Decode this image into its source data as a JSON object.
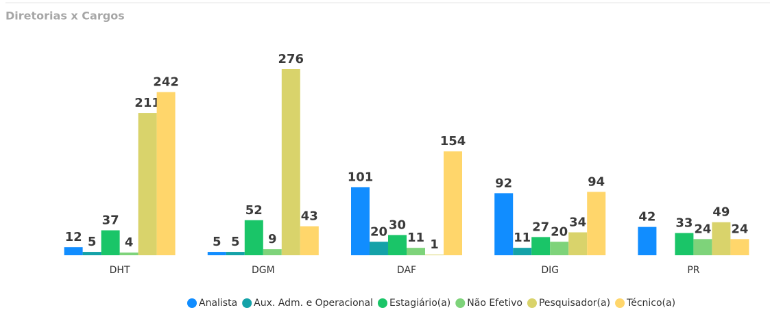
{
  "chart_data": {
    "type": "bar",
    "title": "Diretorias x Cargos",
    "categories": [
      "DHT",
      "DGM",
      "DAF",
      "DIG",
      "PR"
    ],
    "series": [
      {
        "name": "Analista",
        "color": "#118DFF",
        "values": [
          12,
          5,
          101,
          92,
          42
        ]
      },
      {
        "name": "Aux. Adm. e Operacional",
        "color": "#14A2A8",
        "values": [
          5,
          5,
          20,
          11,
          null
        ]
      },
      {
        "name": "Estagiário(a)",
        "color": "#1AC568",
        "values": [
          37,
          52,
          30,
          27,
          33
        ]
      },
      {
        "name": "Não Efetivo",
        "color": "#7ED37A",
        "values": [
          4,
          9,
          11,
          20,
          24
        ]
      },
      {
        "name": "Pesquisador(a)",
        "color": "#D9D36B",
        "values": [
          211,
          276,
          1,
          34,
          49
        ]
      },
      {
        "name": "Técnico(a)",
        "color": "#FFD66B",
        "values": [
          242,
          43,
          154,
          94,
          24
        ]
      }
    ]
  }
}
